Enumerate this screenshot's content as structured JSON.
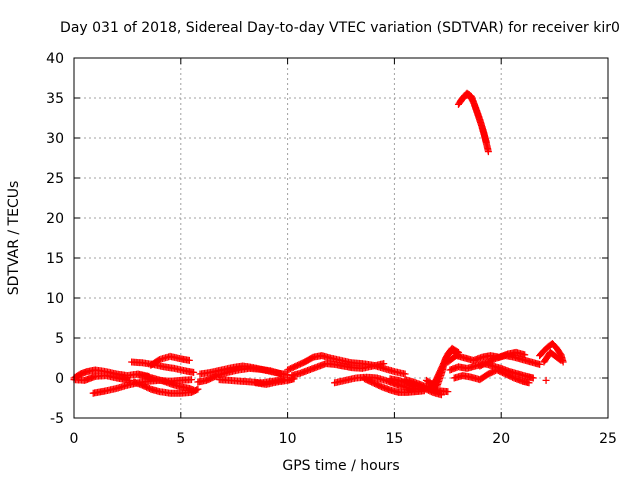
{
  "chart_data": {
    "type": "scatter",
    "title": "Day 031 of 2018, Sidereal Day-to-day VTEC variation (SDTVAR) for receiver kir0",
    "xlabel": "GPS time / hours",
    "ylabel": "SDTVAR / TECUs",
    "xlim": [
      0,
      25
    ],
    "ylim": [
      -5,
      40
    ],
    "xticks": [
      0,
      5,
      10,
      15,
      20,
      25
    ],
    "yticks": [
      -5,
      0,
      5,
      10,
      15,
      20,
      25,
      30,
      35,
      40
    ],
    "grid": true,
    "marker": "+",
    "color": "#ff0000",
    "series": [
      {
        "name": "SDTVAR",
        "segments": [
          {
            "x": [
              0.0,
              0.3,
              0.6,
              1.0,
              1.5,
              2.0,
              2.5,
              3.0,
              3.5
            ],
            "y": [
              0.0,
              0.5,
              0.8,
              1.0,
              0.8,
              0.5,
              0.3,
              0.5,
              0.2
            ]
          },
          {
            "x": [
              0.0,
              0.5,
              1.0,
              1.5,
              2.0,
              2.6
            ],
            "y": [
              -0.2,
              -0.3,
              0.2,
              0.3,
              0.0,
              -0.3
            ]
          },
          {
            "x": [
              0.9,
              1.5,
              2.0,
              2.5,
              3.0,
              3.5,
              4.0,
              4.5,
              5.0,
              5.5
            ],
            "y": [
              -1.9,
              -1.6,
              -1.3,
              -0.9,
              -0.6,
              -0.4,
              -0.3,
              -0.4,
              -0.3,
              -0.2
            ]
          },
          {
            "x": [
              2.8,
              3.2,
              3.6,
              4.0,
              4.5,
              5.0,
              5.5,
              5.8
            ],
            "y": [
              -0.5,
              -0.9,
              -1.4,
              -1.7,
              -1.9,
              -1.9,
              -1.8,
              -1.4
            ]
          },
          {
            "x": [
              3.0,
              3.4,
              3.8,
              4.2,
              4.6,
              5.0,
              5.4,
              5.6
            ],
            "y": [
              0.4,
              0.2,
              -0.1,
              -0.4,
              -0.8,
              -1.1,
              -1.3,
              -1.5
            ]
          },
          {
            "x": [
              2.7,
              3.2,
              3.7,
              4.2,
              4.7,
              5.2,
              5.6
            ],
            "y": [
              2.0,
              1.9,
              1.7,
              1.4,
              1.2,
              0.9,
              0.7
            ]
          },
          {
            "x": [
              3.6,
              4.0,
              4.5,
              5.0,
              5.4
            ],
            "y": [
              1.6,
              2.3,
              2.7,
              2.4,
              2.2
            ]
          },
          {
            "x": [
              5.8,
              6.2,
              6.7,
              7.2,
              7.7,
              8.2,
              8.7,
              9.2,
              9.7
            ],
            "y": [
              -0.5,
              -0.3,
              0.3,
              0.7,
              1.0,
              1.2,
              1.1,
              0.9,
              0.5
            ]
          },
          {
            "x": [
              5.9,
              6.4,
              6.9,
              7.4,
              7.9,
              8.4,
              8.9,
              9.4,
              10.0
            ],
            "y": [
              0.5,
              0.7,
              1.0,
              1.3,
              1.5,
              1.3,
              1.0,
              0.7,
              0.4
            ]
          },
          {
            "x": [
              6.8,
              7.3,
              7.8,
              8.3,
              8.8,
              9.3,
              9.8
            ],
            "y": [
              -0.2,
              -0.3,
              -0.4,
              -0.5,
              -0.6,
              -0.4,
              -0.2
            ]
          },
          {
            "x": [
              8.5,
              9.0,
              9.5,
              10.0,
              10.3
            ],
            "y": [
              -0.6,
              -0.8,
              -0.5,
              -0.3,
              -0.1
            ]
          },
          {
            "x": [
              10.0,
              10.4,
              10.8,
              11.2,
              11.6,
              12.0,
              12.5,
              13.0,
              13.5,
              14.0,
              14.5,
              15.0,
              15.5
            ],
            "y": [
              1.0,
              1.5,
              2.0,
              2.6,
              2.8,
              2.5,
              2.2,
              1.9,
              1.8,
              1.6,
              1.2,
              0.8,
              0.5
            ]
          },
          {
            "x": [
              10.2,
              10.6,
              11.0,
              11.4,
              11.8,
              12.2,
              12.6,
              13.0,
              13.5,
              14.0,
              14.5
            ],
            "y": [
              0.3,
              0.6,
              1.0,
              1.4,
              1.8,
              1.7,
              1.5,
              1.3,
              1.2,
              1.5,
              1.8
            ]
          },
          {
            "x": [
              12.2,
              12.7,
              13.2,
              13.7,
              14.2,
              14.7,
              15.2,
              15.7,
              16.2
            ],
            "y": [
              -0.6,
              -0.3,
              0.0,
              0.1,
              0.0,
              -0.4,
              -0.9,
              -1.3,
              -1.4
            ]
          },
          {
            "x": [
              13.6,
              14.0,
              14.4,
              14.8,
              15.2,
              15.6,
              16.0,
              16.4
            ],
            "y": [
              -0.1,
              -0.6,
              -1.1,
              -1.5,
              -1.8,
              -1.8,
              -1.7,
              -1.6
            ]
          },
          {
            "x": [
              14.8,
              15.2,
              15.6,
              16.0,
              16.4,
              16.8,
              17.2
            ],
            "y": [
              -0.1,
              -0.3,
              -0.6,
              -1.0,
              -1.3,
              -1.8,
              -2.1
            ]
          },
          {
            "x": [
              15.5,
              15.9,
              16.3,
              16.7,
              17.1,
              17.5
            ],
            "y": [
              -0.2,
              -0.5,
              -0.9,
              -1.3,
              -1.6,
              -1.7
            ]
          },
          {
            "x": [
              16.5,
              16.8,
              17.0,
              17.2,
              17.4,
              17.7,
              18.0
            ],
            "y": [
              -0.3,
              -0.8,
              -1.0,
              0.5,
              2.5,
              3.5,
              2.8
            ]
          },
          {
            "x": [
              16.6,
              16.9,
              17.1,
              17.3,
              17.5,
              17.7,
              18.0
            ],
            "y": [
              -1.2,
              -0.5,
              0.6,
              1.8,
              3.0,
              3.7,
              3.2
            ]
          },
          {
            "x": [
              17.5,
              17.9,
              18.3,
              18.7,
              19.1,
              19.5,
              19.9,
              20.3,
              20.7,
              21.1
            ],
            "y": [
              2.0,
              2.8,
              2.5,
              2.2,
              2.6,
              2.8,
              2.6,
              3.0,
              3.2,
              2.9
            ]
          },
          {
            "x": [
              17.6,
              18.0,
              18.4,
              18.8,
              19.2,
              19.6,
              20.0,
              20.4,
              20.8,
              21.2,
              21.5
            ],
            "y": [
              1.0,
              1.4,
              1.2,
              1.5,
              1.8,
              1.5,
              1.2,
              0.8,
              0.5,
              0.2,
              0.0
            ]
          },
          {
            "x": [
              17.8,
              18.2,
              18.6,
              19.0,
              19.4,
              19.8,
              20.2,
              20.6,
              21.0,
              21.3
            ],
            "y": [
              0.0,
              0.3,
              0.1,
              -0.2,
              0.5,
              1.0,
              0.5,
              0.0,
              -0.4,
              -0.6
            ]
          },
          {
            "x": [
              19.0,
              19.4,
              19.8,
              20.2,
              20.6,
              21.0,
              21.4,
              21.8
            ],
            "y": [
              1.5,
              2.0,
              2.5,
              2.8,
              2.6,
              2.3,
              2.0,
              1.7
            ]
          },
          {
            "x": [
              18.0,
              18.2,
              18.4,
              18.6,
              18.8,
              19.0,
              19.2,
              19.4
            ],
            "y": [
              34.2,
              35.0,
              35.6,
              35.2,
              33.8,
              32.3,
              30.5,
              28.3
            ]
          },
          {
            "x": [
              18.1,
              18.3,
              18.5,
              18.7,
              18.9,
              19.1,
              19.3
            ],
            "y": [
              34.6,
              35.3,
              35.4,
              34.5,
              33.0,
              31.4,
              29.5
            ]
          },
          {
            "x": [
              21.8,
              22.0,
              22.2,
              22.4,
              22.6,
              22.8,
              22.9
            ],
            "y": [
              2.8,
              3.4,
              3.9,
              4.3,
              3.7,
              2.9,
              2.0
            ]
          },
          {
            "x": [
              22.0,
              22.3,
              22.6,
              22.8
            ],
            "y": [
              2.0,
              3.2,
              2.6,
              2.2
            ]
          },
          {
            "x": [
              22.1
            ],
            "y": [
              -0.3
            ]
          }
        ]
      }
    ]
  }
}
